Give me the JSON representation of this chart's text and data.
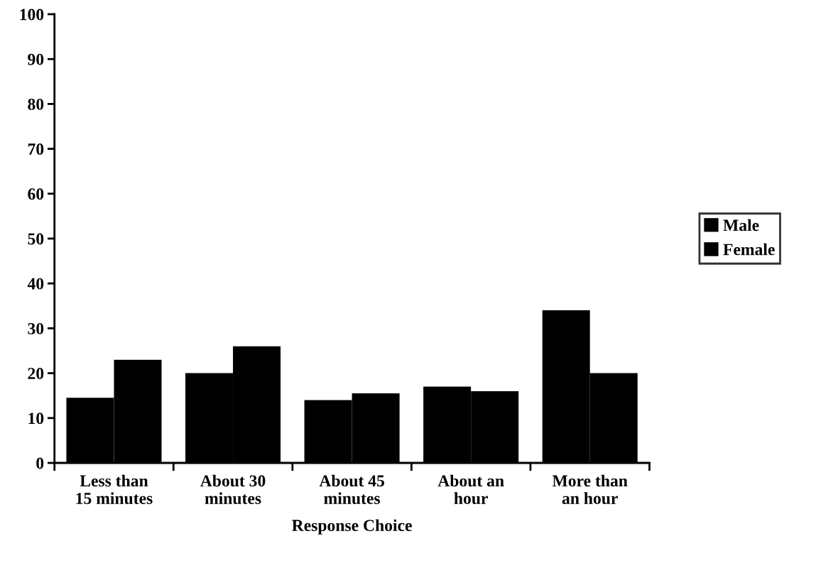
{
  "chart_data": {
    "type": "bar",
    "xlabel": "Response Choice",
    "categories": [
      "Less than\n15 minutes",
      "About 30\nminutes",
      "About 45\nminutes",
      "About an\nhour",
      "More than\nan hour"
    ],
    "series": [
      {
        "name": "Male",
        "color": "#000000",
        "values": [
          14.5,
          20,
          14,
          17,
          34
        ]
      },
      {
        "name": "Female",
        "color": "#000000",
        "values": [
          23,
          26,
          15.5,
          16,
          20
        ]
      }
    ],
    "ylim": [
      0,
      100
    ],
    "yticks": [
      0,
      10,
      20,
      30,
      40,
      50,
      60,
      70,
      80,
      90,
      100
    ],
    "grid": false,
    "legend": "right"
  }
}
